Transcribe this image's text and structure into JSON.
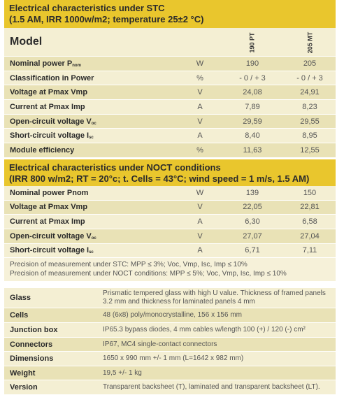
{
  "stc": {
    "title_line1": "Electrical characteristics under STC",
    "title_line2": "(1.5 AM, IRR 1000w/m2; temperature 25±2 °C)",
    "model_label": "Model",
    "model1": "190 PT",
    "model2": "205 MT",
    "rows": [
      {
        "label": "Nominal power P",
        "sub": "nom",
        "unit": "W",
        "v1": "190",
        "v2": "205"
      },
      {
        "label": "Classification in Power",
        "sub": "",
        "unit": "%",
        "v1": "- 0 / + 3",
        "v2": "- 0 / + 3"
      },
      {
        "label": "Voltage at Pmax Vmp",
        "sub": "",
        "unit": "V",
        "v1": "24,08",
        "v2": "24,91"
      },
      {
        "label": "Current at Pmax Imp",
        "sub": "",
        "unit": "A",
        "v1": "7,89",
        "v2": "8,23"
      },
      {
        "label": "Open-circuit voltage V",
        "sub": "oc",
        "unit": "V",
        "v1": "29,59",
        "v2": "29,55"
      },
      {
        "label": "Short-circuit voltage I",
        "sub": "sc",
        "unit": "A",
        "v1": "8,40",
        "v2": "8,95"
      },
      {
        "label": "Module efficiency",
        "sub": "",
        "unit": "%",
        "v1": "11,63",
        "v2": "12,55"
      }
    ]
  },
  "noct": {
    "title_line1": "Electrical characteristics under NOCT conditions",
    "title_line2": "(IRR 800 w/m2; RT = 20°c; t. Cells = 43°C; wind speed = 1 m/s, 1.5 AM)",
    "rows": [
      {
        "label": "Nominal power Pnom",
        "sub": "",
        "unit": "W",
        "v1": "139",
        "v2": "150"
      },
      {
        "label": "Voltage at Pmax Vmp",
        "sub": "",
        "unit": "V",
        "v1": "22,05",
        "v2": "22,81"
      },
      {
        "label": "Current at Pmax Imp",
        "sub": "",
        "unit": "A",
        "v1": "6,30",
        "v2": "6,58"
      },
      {
        "label": "Open-circuit voltage V",
        "sub": "oc",
        "unit": "V",
        "v1": "27,07",
        "v2": "27,04"
      },
      {
        "label": "Short-circuit voltage I",
        "sub": "sc",
        "unit": "A",
        "v1": "6,71",
        "v2": "7,11"
      }
    ],
    "note1": "Precision of measurement under STC: MPP ≤ 3%; Voc, Vmp, Isc, Imp ≤ 10%",
    "note2": "Precision of measurement under NOCT conditions: MPP ≤ 5%; Voc, Vmp, Isc, Imp ≤ 10%"
  },
  "specs": [
    {
      "label": "Glass",
      "text": "Prismatic tempered glass with high U value. Thickness of framed panels 3.2 mm and thickness for laminated panels 4 mm"
    },
    {
      "label": "Cells",
      "text": "48 (6x8) poly/monocrystalline, 156 x 156 mm"
    },
    {
      "label": "Junction box",
      "text": "IP65.3 bypass diodes, 4 mm cables w/length 100 (+) / 120 (-) cm²"
    },
    {
      "label": "Connectors",
      "text": "IP67, MC4 single-contact connectors"
    },
    {
      "label": "Dimensions",
      "text": "1650 x 990 mm +/- 1 mm (L=1642 x 982 mm)"
    },
    {
      "label": "Weight",
      "text": "19,5 +/- 1 kg"
    },
    {
      "label": "Version",
      "text": "Transparent backsheet (T), laminated and transparent backsheet (LT)."
    }
  ]
}
